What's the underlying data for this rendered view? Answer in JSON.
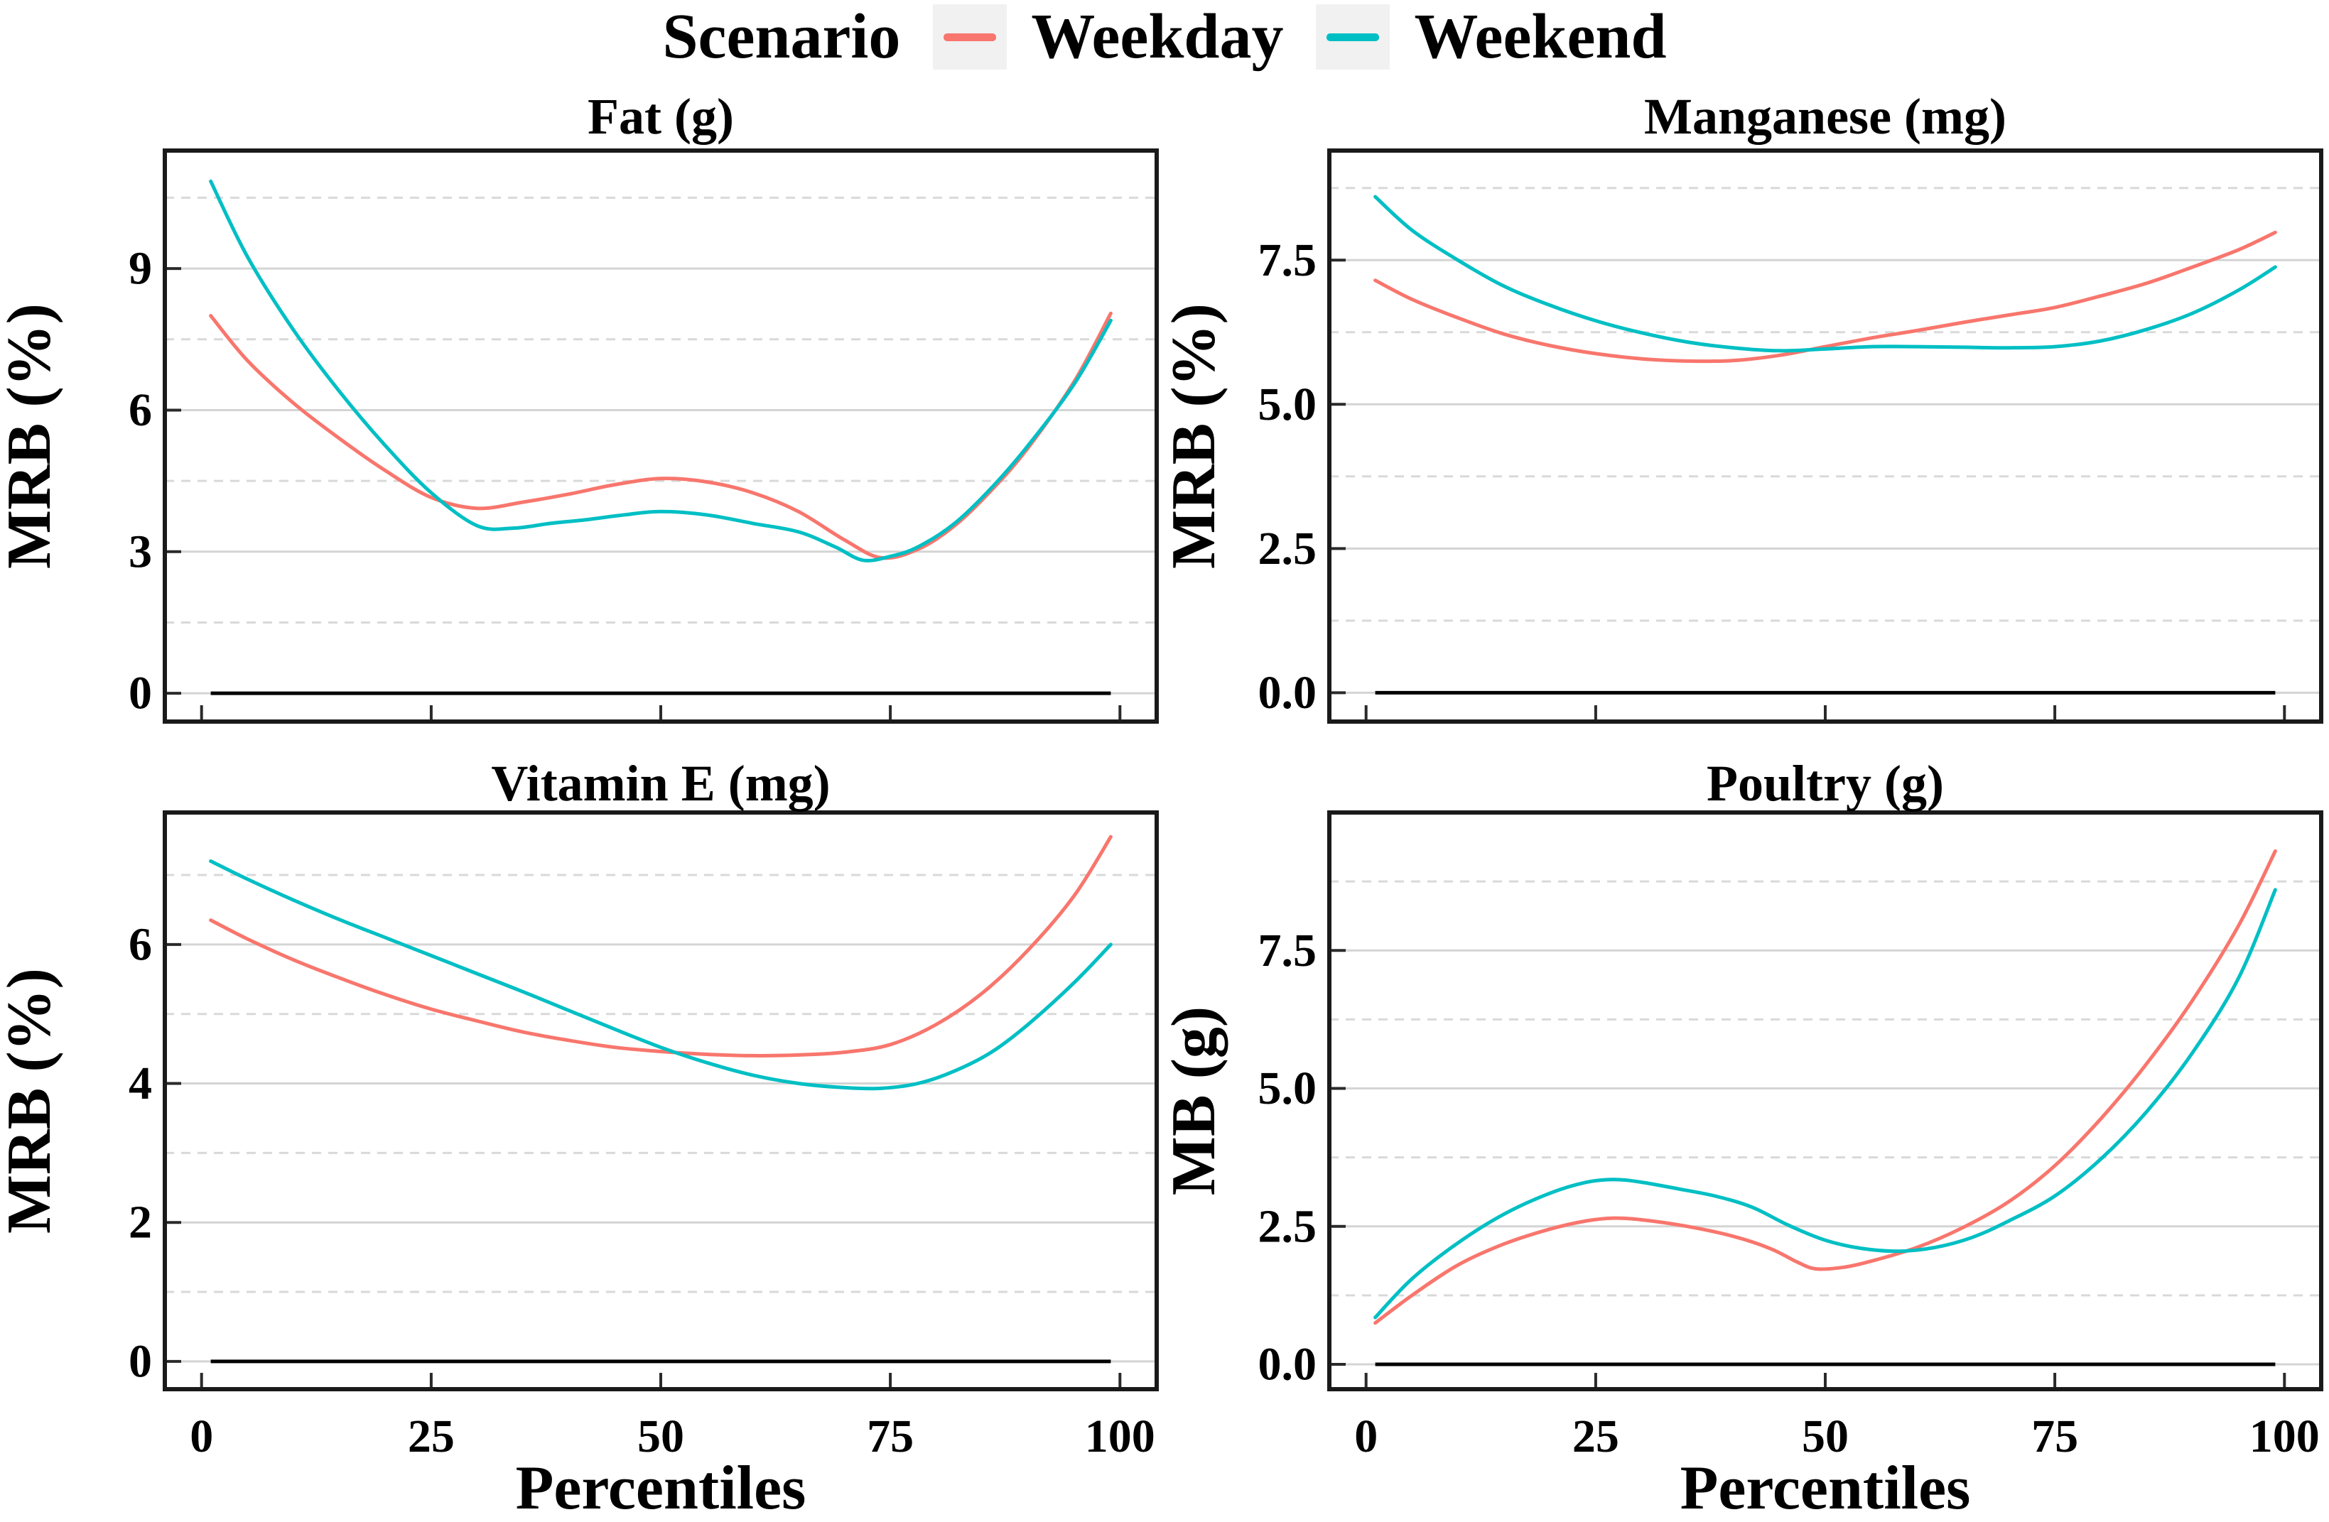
{
  "legend": {
    "title": "Scenario",
    "items": [
      {
        "label": "Weekday",
        "color": "#F8766D"
      },
      {
        "label": "Weekend",
        "color": "#00BFC4"
      }
    ]
  },
  "colors": {
    "background": "#FFFFFF",
    "weekday": "#F8766D",
    "weekend": "#00BFC4",
    "major_grid": "#D4D4D4",
    "minor_grid": "#D9D9D9",
    "panel_border": "#1A1A1A",
    "zero_line": "#000000",
    "tick": "#2A2A2A",
    "legend_key_bg": "#F1F1F1",
    "text": "#000000"
  },
  "chart_data": [
    {
      "type": "line",
      "title": "Fat (g)",
      "ylabel": "MRB (%)",
      "xlabel": "",
      "show_x_axis": false,
      "xlim": [
        -4,
        104
      ],
      "ylim": [
        -0.6,
        11.5
      ],
      "x_ticks": [
        0,
        25,
        50,
        75,
        100
      ],
      "y_ticks": [
        0,
        3,
        6,
        9
      ],
      "y_tick_labels": [
        "0",
        "3",
        "6",
        "9"
      ],
      "y_minor": [
        1.5,
        4.5,
        7.5,
        10.5
      ],
      "zero_line": {
        "y": 0,
        "x_start": 1,
        "x_end": 99
      },
      "legend_position": "none",
      "grid": "horizontal-only",
      "series": [
        {
          "name": "Weekday",
          "color": "#F8766D",
          "points": [
            [
              1,
              8.0
            ],
            [
              5,
              7.05
            ],
            [
              10,
              6.15
            ],
            [
              15,
              5.4
            ],
            [
              20,
              4.72
            ],
            [
              25,
              4.15
            ],
            [
              30,
              3.92
            ],
            [
              35,
              4.05
            ],
            [
              40,
              4.22
            ],
            [
              45,
              4.42
            ],
            [
              50,
              4.55
            ],
            [
              55,
              4.48
            ],
            [
              60,
              4.25
            ],
            [
              65,
              3.85
            ],
            [
              70,
              3.25
            ],
            [
              74,
              2.87
            ],
            [
              78,
              3.05
            ],
            [
              82,
              3.55
            ],
            [
              86,
              4.3
            ],
            [
              90,
              5.2
            ],
            [
              95,
              6.6
            ],
            [
              99,
              8.05
            ]
          ]
        },
        {
          "name": "Weekend",
          "color": "#00BFC4",
          "points": [
            [
              1,
              10.85
            ],
            [
              5,
              9.25
            ],
            [
              10,
              7.7
            ],
            [
              15,
              6.4
            ],
            [
              20,
              5.25
            ],
            [
              25,
              4.25
            ],
            [
              30,
              3.55
            ],
            [
              34,
              3.5
            ],
            [
              38,
              3.6
            ],
            [
              42,
              3.68
            ],
            [
              46,
              3.78
            ],
            [
              50,
              3.85
            ],
            [
              55,
              3.78
            ],
            [
              60,
              3.6
            ],
            [
              65,
              3.42
            ],
            [
              69,
              3.1
            ],
            [
              72,
              2.82
            ],
            [
              75,
              2.9
            ],
            [
              78,
              3.1
            ],
            [
              82,
              3.6
            ],
            [
              86,
              4.35
            ],
            [
              90,
              5.25
            ],
            [
              95,
              6.55
            ],
            [
              99,
              7.9
            ]
          ]
        }
      ]
    },
    {
      "type": "line",
      "title": "Manganese (mg)",
      "ylabel": "MRB (%)",
      "xlabel": "",
      "show_x_axis": false,
      "xlim": [
        -4,
        104
      ],
      "ylim": [
        -0.5,
        9.4
      ],
      "x_ticks": [
        0,
        25,
        50,
        75,
        100
      ],
      "y_ticks": [
        0,
        2.5,
        5,
        7.5
      ],
      "y_tick_labels": [
        "0.0",
        "2.5",
        "5.0",
        "7.5"
      ],
      "y_minor": [
        1.25,
        3.75,
        6.25,
        8.75
      ],
      "zero_line": {
        "y": 0,
        "x_start": 1,
        "x_end": 99
      },
      "legend_position": "none",
      "grid": "horizontal-only",
      "series": [
        {
          "name": "Weekday",
          "color": "#F8766D",
          "points": [
            [
              1,
              7.15
            ],
            [
              5,
              6.82
            ],
            [
              10,
              6.5
            ],
            [
              15,
              6.22
            ],
            [
              20,
              6.02
            ],
            [
              25,
              5.88
            ],
            [
              30,
              5.79
            ],
            [
              35,
              5.75
            ],
            [
              40,
              5.76
            ],
            [
              45,
              5.85
            ],
            [
              50,
              6.0
            ],
            [
              55,
              6.15
            ],
            [
              60,
              6.28
            ],
            [
              65,
              6.42
            ],
            [
              70,
              6.55
            ],
            [
              75,
              6.68
            ],
            [
              80,
              6.88
            ],
            [
              85,
              7.1
            ],
            [
              90,
              7.38
            ],
            [
              95,
              7.68
            ],
            [
              99,
              7.98
            ]
          ]
        },
        {
          "name": "Weekend",
          "color": "#00BFC4",
          "points": [
            [
              1,
              8.6
            ],
            [
              5,
              8.02
            ],
            [
              10,
              7.5
            ],
            [
              15,
              7.05
            ],
            [
              20,
              6.72
            ],
            [
              25,
              6.45
            ],
            [
              30,
              6.24
            ],
            [
              35,
              6.08
            ],
            [
              40,
              5.98
            ],
            [
              45,
              5.93
            ],
            [
              50,
              5.96
            ],
            [
              55,
              6.0
            ],
            [
              60,
              6.0
            ],
            [
              65,
              5.99
            ],
            [
              70,
              5.98
            ],
            [
              75,
              6.0
            ],
            [
              80,
              6.1
            ],
            [
              85,
              6.3
            ],
            [
              90,
              6.58
            ],
            [
              95,
              6.98
            ],
            [
              99,
              7.38
            ]
          ]
        }
      ]
    },
    {
      "type": "line",
      "title": "Vitamin E (mg)",
      "ylabel": "MRB (%)",
      "xlabel": "Percentiles",
      "show_x_axis": true,
      "xlim": [
        -4,
        104
      ],
      "ylim": [
        -0.4,
        7.9
      ],
      "x_ticks": [
        0,
        25,
        50,
        75,
        100
      ],
      "y_ticks": [
        0,
        2,
        4,
        6
      ],
      "y_tick_labels": [
        "0",
        "2",
        "4",
        "6"
      ],
      "y_minor": [
        1,
        3,
        5,
        7
      ],
      "zero_line": {
        "y": 0,
        "x_start": 1,
        "x_end": 99
      },
      "legend_position": "none",
      "grid": "horizontal-only",
      "series": [
        {
          "name": "Weekday",
          "color": "#F8766D",
          "points": [
            [
              1,
              6.35
            ],
            [
              5,
              6.08
            ],
            [
              10,
              5.78
            ],
            [
              15,
              5.52
            ],
            [
              20,
              5.28
            ],
            [
              25,
              5.07
            ],
            [
              30,
              4.9
            ],
            [
              35,
              4.74
            ],
            [
              40,
              4.62
            ],
            [
              45,
              4.52
            ],
            [
              50,
              4.46
            ],
            [
              55,
              4.42
            ],
            [
              60,
              4.4
            ],
            [
              65,
              4.41
            ],
            [
              70,
              4.45
            ],
            [
              75,
              4.56
            ],
            [
              80,
              4.85
            ],
            [
              85,
              5.3
            ],
            [
              90,
              5.92
            ],
            [
              95,
              6.7
            ],
            [
              99,
              7.55
            ]
          ]
        },
        {
          "name": "Weekend",
          "color": "#00BFC4",
          "points": [
            [
              1,
              7.2
            ],
            [
              5,
              6.94
            ],
            [
              10,
              6.64
            ],
            [
              15,
              6.36
            ],
            [
              20,
              6.1
            ],
            [
              25,
              5.84
            ],
            [
              30,
              5.58
            ],
            [
              35,
              5.32
            ],
            [
              40,
              5.05
            ],
            [
              45,
              4.78
            ],
            [
              50,
              4.52
            ],
            [
              55,
              4.3
            ],
            [
              60,
              4.12
            ],
            [
              65,
              4.0
            ],
            [
              70,
              3.94
            ],
            [
              74,
              3.93
            ],
            [
              78,
              4.0
            ],
            [
              82,
              4.18
            ],
            [
              86,
              4.45
            ],
            [
              90,
              4.85
            ],
            [
              95,
              5.45
            ],
            [
              99,
              6.0
            ]
          ]
        }
      ]
    },
    {
      "type": "line",
      "title": "Poultry (g)",
      "ylabel": "MB (g)",
      "xlabel": "Percentiles",
      "show_x_axis": true,
      "xlim": [
        -4,
        104
      ],
      "ylim": [
        -0.45,
        10.0
      ],
      "x_ticks": [
        0,
        25,
        50,
        75,
        100
      ],
      "y_ticks": [
        0,
        2.5,
        5,
        7.5
      ],
      "y_tick_labels": [
        "0.0",
        "2.5",
        "5.0",
        "7.5"
      ],
      "y_minor": [
        1.25,
        3.75,
        6.25,
        8.75
      ],
      "zero_line": {
        "y": 0,
        "x_start": 1,
        "x_end": 99
      },
      "legend_position": "none",
      "grid": "horizontal-only",
      "series": [
        {
          "name": "Weekday",
          "color": "#F8766D",
          "points": [
            [
              1,
              0.75
            ],
            [
              5,
              1.25
            ],
            [
              10,
              1.8
            ],
            [
              15,
              2.18
            ],
            [
              20,
              2.45
            ],
            [
              24,
              2.6
            ],
            [
              27,
              2.65
            ],
            [
              30,
              2.62
            ],
            [
              35,
              2.5
            ],
            [
              40,
              2.32
            ],
            [
              44,
              2.1
            ],
            [
              47,
              1.85
            ],
            [
              49,
              1.73
            ],
            [
              52,
              1.76
            ],
            [
              55,
              1.87
            ],
            [
              60,
              2.12
            ],
            [
              65,
              2.48
            ],
            [
              70,
              2.95
            ],
            [
              75,
              3.6
            ],
            [
              80,
              4.45
            ],
            [
              85,
              5.45
            ],
            [
              90,
              6.6
            ],
            [
              95,
              7.95
            ],
            [
              99,
              9.3
            ]
          ]
        },
        {
          "name": "Weekend",
          "color": "#00BFC4",
          "points": [
            [
              1,
              0.85
            ],
            [
              5,
              1.55
            ],
            [
              10,
              2.2
            ],
            [
              15,
              2.72
            ],
            [
              20,
              3.1
            ],
            [
              24,
              3.3
            ],
            [
              27,
              3.35
            ],
            [
              30,
              3.3
            ],
            [
              34,
              3.18
            ],
            [
              38,
              3.05
            ],
            [
              42,
              2.85
            ],
            [
              46,
              2.52
            ],
            [
              50,
              2.25
            ],
            [
              54,
              2.1
            ],
            [
              58,
              2.05
            ],
            [
              62,
              2.12
            ],
            [
              66,
              2.3
            ],
            [
              70,
              2.6
            ],
            [
              75,
              3.05
            ],
            [
              80,
              3.72
            ],
            [
              85,
              4.58
            ],
            [
              90,
              5.65
            ],
            [
              95,
              7.0
            ],
            [
              99,
              8.6
            ]
          ]
        }
      ]
    }
  ]
}
